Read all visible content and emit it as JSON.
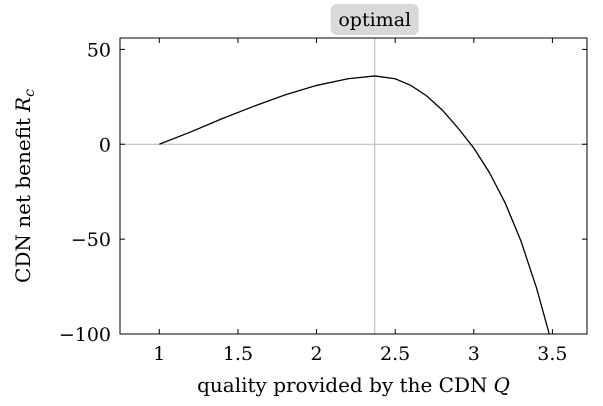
{
  "chart_data": {
    "type": "line",
    "xlabel": "quality provided by the CDN",
    "xlabel_var": "Q",
    "ylabel": "CDN net benefit",
    "ylabel_var": "R",
    "ylabel_sub": "c",
    "xlim": [
      0.75,
      3.72
    ],
    "ylim": [
      -100,
      56
    ],
    "xticks": [
      1,
      1.5,
      2,
      2.5,
      3,
      3.5
    ],
    "xtick_labels": [
      "1",
      "1.5",
      "2",
      "2.5",
      "3",
      "3.5"
    ],
    "yticks": [
      -100,
      -50,
      0,
      50
    ],
    "ytick_labels": [
      "−100",
      "−50",
      "0",
      "50"
    ],
    "grid": false,
    "reference_lines": {
      "horizontal_y": 0,
      "vertical_x": 2.37
    },
    "annotation": {
      "text": "optimal",
      "x": 2.37
    },
    "series": [
      {
        "x": [
          1.0,
          1.2,
          1.4,
          1.6,
          1.8,
          2.0,
          2.2,
          2.37,
          2.5,
          2.6,
          2.7,
          2.8,
          2.9,
          3.0,
          3.1,
          3.2,
          3.3,
          3.4,
          3.48
        ],
        "y": [
          0,
          6.5,
          13.5,
          20.0,
          26.0,
          31.0,
          34.5,
          36.0,
          34.5,
          31.0,
          25.5,
          18.0,
          8.5,
          -2.0,
          -15.0,
          -31.0,
          -51.0,
          -76.0,
          -100.0
        ],
        "color": "#000000"
      }
    ]
  }
}
